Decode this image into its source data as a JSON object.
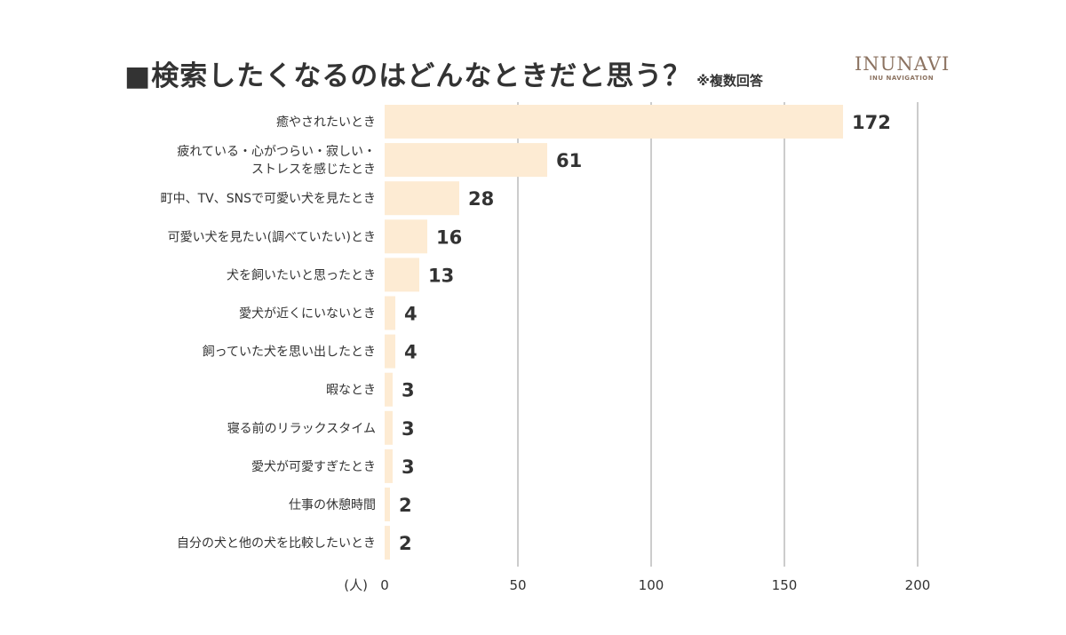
{
  "title": "■検索したくなるのはどんなときだと思う？",
  "title_note": "※複数回答",
  "logo": {
    "main": "INUNAVI",
    "sub": "INU NAVIGATION"
  },
  "colors": {
    "bar": "#fdebd3",
    "grid": "#cccccc",
    "text": "#333333",
    "logo": "#8c7361"
  },
  "chart_data": {
    "type": "bar",
    "orientation": "horizontal",
    "categories": [
      [
        "癒やされたいとき"
      ],
      [
        "疲れている・心がつらい・寂しい・",
        "ストレスを感じたとき"
      ],
      [
        "町中、TV、SNSで可愛い犬を見たとき"
      ],
      [
        "可愛い犬を見たい(調べていたい)とき"
      ],
      [
        "犬を飼いたいと思ったとき"
      ],
      [
        "愛犬が近くにいないとき"
      ],
      [
        "飼っていた犬を思い出したとき"
      ],
      [
        "暇なとき"
      ],
      [
        "寝る前のリラックスタイム"
      ],
      [
        "愛犬が可愛すぎたとき"
      ],
      [
        "仕事の休憩時間"
      ],
      [
        "自分の犬と他の犬を比較したいとき"
      ]
    ],
    "values": [
      172,
      61,
      28,
      16,
      13,
      4,
      4,
      3,
      3,
      3,
      2,
      2
    ],
    "xlabel": "(人)",
    "xlim": [
      0,
      200
    ],
    "xticks": [
      0,
      50,
      100,
      150,
      200
    ],
    "grid": true,
    "data_labels": true
  }
}
